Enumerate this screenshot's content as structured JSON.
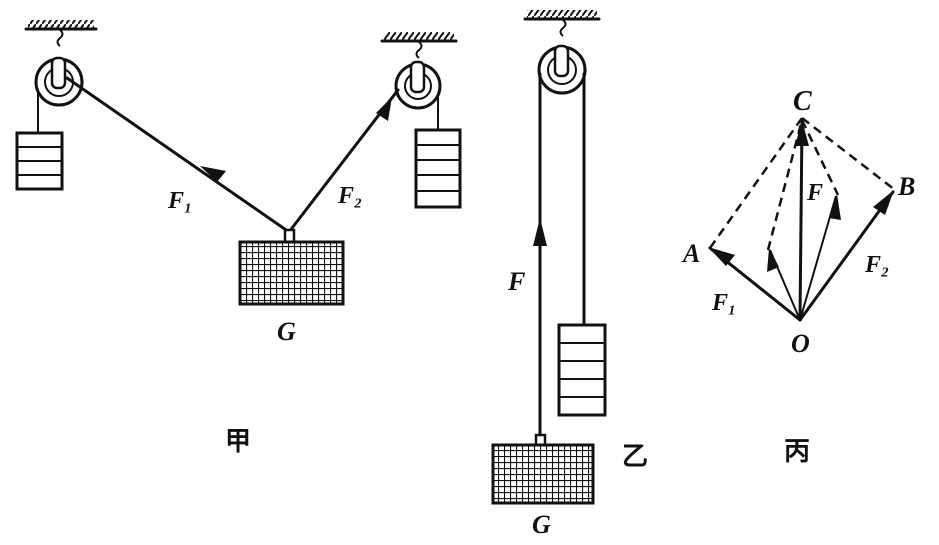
{
  "panels": {
    "jia": {
      "caption": "甲",
      "labels": {
        "f1": "F₁",
        "f2": "F₂",
        "g": "G"
      }
    },
    "yi": {
      "caption": "乙",
      "labels": {
        "f": "F",
        "g": "G"
      }
    },
    "bing": {
      "caption": "丙",
      "labels": {
        "c": "C",
        "f": "F",
        "a": "A",
        "b": "B",
        "f1": "F₁",
        "f2": "F₂",
        "o": "O"
      }
    }
  },
  "colors": {
    "ink": "#111111",
    "background": "#ffffff"
  }
}
